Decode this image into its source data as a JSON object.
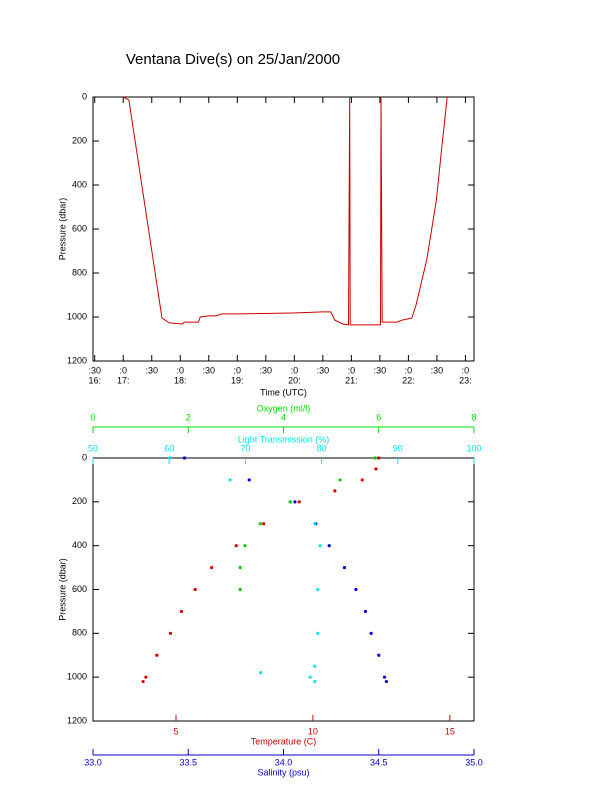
{
  "title": "Ventana Dive(s) on 25/Jan/2000",
  "chart_data": [
    {
      "type": "line",
      "x_label": "Time (UTC)",
      "y_label": "Pressure (dbar)",
      "xlim": [
        16.47,
        23.15
      ],
      "ylim": [
        0,
        1200
      ],
      "y_inverted": true,
      "xticks": [
        {
          "value": 16.5,
          "label": ":30"
        },
        {
          "value": 17,
          "label": ":0"
        },
        {
          "value": 17.5,
          "label": ":30"
        },
        {
          "value": 18,
          "label": ":0"
        },
        {
          "value": 18.5,
          "label": ":30"
        },
        {
          "value": 19,
          "label": ":0"
        },
        {
          "value": 19.5,
          "label": ":30"
        },
        {
          "value": 20,
          "label": ":0"
        },
        {
          "value": 20.5,
          "label": ":30"
        },
        {
          "value": 21,
          "label": ":0"
        },
        {
          "value": 21.5,
          "label": ":30"
        },
        {
          "value": 22,
          "label": ":0"
        },
        {
          "value": 22.5,
          "label": ":30"
        },
        {
          "value": 23,
          "label": ":0"
        }
      ],
      "xticks_hours": [
        {
          "value": 16.5,
          "label": "16:"
        },
        {
          "value": 17,
          "label": "17:"
        },
        {
          "value": 18,
          "label": "18:"
        },
        {
          "value": 19,
          "label": "19:"
        },
        {
          "value": 20,
          "label": "20:"
        },
        {
          "value": 21,
          "label": "21:"
        },
        {
          "value": 22,
          "label": "22:"
        },
        {
          "value": 23,
          "label": "23:"
        }
      ],
      "yticks": [
        0,
        200,
        400,
        600,
        800,
        1000,
        1200
      ],
      "series": [
        {
          "color": "#cc0000",
          "x": [
            17.0,
            17.1,
            17.68,
            17.81,
            18.04,
            18.07,
            18.32,
            18.35,
            18.51,
            18.63,
            18.73,
            19.03,
            19.98,
            20.5,
            20.64,
            20.71,
            20.85,
            20.95,
            20.97,
            20.98,
            21.51,
            21.52,
            21.54,
            21.8,
            21.89,
            22.06,
            22.13,
            22.32,
            22.49,
            22.58,
            22.68
          ],
          "y": [
            0,
            14,
            1005,
            1027,
            1032,
            1023,
            1023,
            1000,
            995,
            995,
            986,
            986,
            982,
            977,
            977,
            1014,
            1032,
            1036,
            0,
            1036,
            1036,
            0,
            1023,
            1023,
            1014,
            1005,
            950,
            741,
            468,
            241,
            0
          ]
        }
      ]
    },
    {
      "type": "scatter",
      "y_label": "Pressure (dbar)",
      "ylim": [
        0,
        1200
      ],
      "y_inverted": true,
      "yticks": [
        0,
        200,
        400,
        600,
        800,
        1000,
        1200
      ],
      "x_axes": [
        {
          "label": "Temperature (C)",
          "color": "#cc0000",
          "lim": [
            1.97,
            15.88
          ],
          "ticks": [
            5,
            10,
            15
          ]
        },
        {
          "label": "Salinity (psu)",
          "color": "#0000cc",
          "lim": [
            33,
            35
          ],
          "ticks": [
            {
              "value": 33,
              "label": "33.0"
            },
            {
              "value": 33.5,
              "label": "33.5"
            },
            {
              "value": 34,
              "label": "34.0"
            },
            {
              "value": 34.5,
              "label": "34.5"
            },
            {
              "value": 35,
              "label": "35.0"
            }
          ]
        },
        {
          "label": "Light Transmission (%)",
          "color": "#00e5ee",
          "lim": [
            50,
            100
          ],
          "ticks": [
            50,
            60,
            70,
            80,
            90,
            100
          ]
        },
        {
          "label": "Oxygen (ml/l)",
          "color": "#00dd00",
          "lim": [
            0,
            8
          ],
          "ticks": [
            0,
            2,
            4,
            6,
            8
          ]
        }
      ],
      "series": [
        {
          "color": "#dd0000",
          "x_axis": 0,
          "x": [
            12.4,
            12.3,
            11.8,
            10.8,
            9.5,
            8.2,
            7.2,
            6.3,
            5.7,
            5.2,
            4.8,
            4.3,
            3.9,
            3.8
          ],
          "y": [
            0,
            50,
            100,
            150,
            200,
            300,
            400,
            500,
            600,
            700,
            800,
            900,
            1000,
            1020
          ]
        },
        {
          "color": "#0000dd",
          "x_axis": 1,
          "x": [
            33.48,
            33.82,
            34.06,
            34.17,
            34.24,
            34.32,
            34.38,
            34.43,
            34.46,
            34.5,
            34.53,
            34.54
          ],
          "y": [
            0,
            100,
            200,
            300,
            400,
            500,
            600,
            700,
            800,
            900,
            1000,
            1020
          ]
        },
        {
          "color": "#00e5ee",
          "x_axis": 2,
          "x": [
            60.1,
            68,
            75.9,
            79.1,
            79.8,
            79.5,
            79.5,
            79.1,
            78.5,
            72,
            79.1
          ],
          "y": [
            0,
            100,
            200,
            300,
            400,
            600,
            800,
            950,
            1000,
            980,
            1020
          ]
        },
        {
          "color": "#00cc00",
          "x_axis": 3,
          "x": [
            5.92,
            5.19,
            4.14,
            3.51,
            3.19,
            3.09,
            3.09
          ],
          "y": [
            0,
            100,
            200,
            300,
            400,
            500,
            600
          ]
        }
      ]
    }
  ]
}
